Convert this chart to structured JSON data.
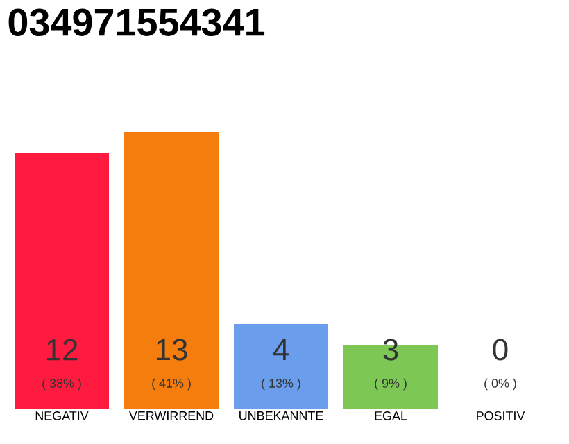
{
  "chart_data": {
    "type": "bar",
    "title": "034971554341",
    "categories": [
      "NEGATIV",
      "VERWIRREND",
      "UNBEKANNTE",
      "EGAL",
      "POSITIV"
    ],
    "values": [
      12,
      13,
      4,
      3,
      0
    ],
    "colors": [
      "#ff1a40",
      "#f47d0e",
      "#6a9eed",
      "#7dc855",
      "#cccccc"
    ],
    "value_labels": [
      "12",
      "13",
      "4",
      "3",
      "0"
    ],
    "annotations": [
      "( 38% )",
      "( 41% )",
      "( 13% )",
      "( 9% )",
      "( 0% )"
    ]
  }
}
